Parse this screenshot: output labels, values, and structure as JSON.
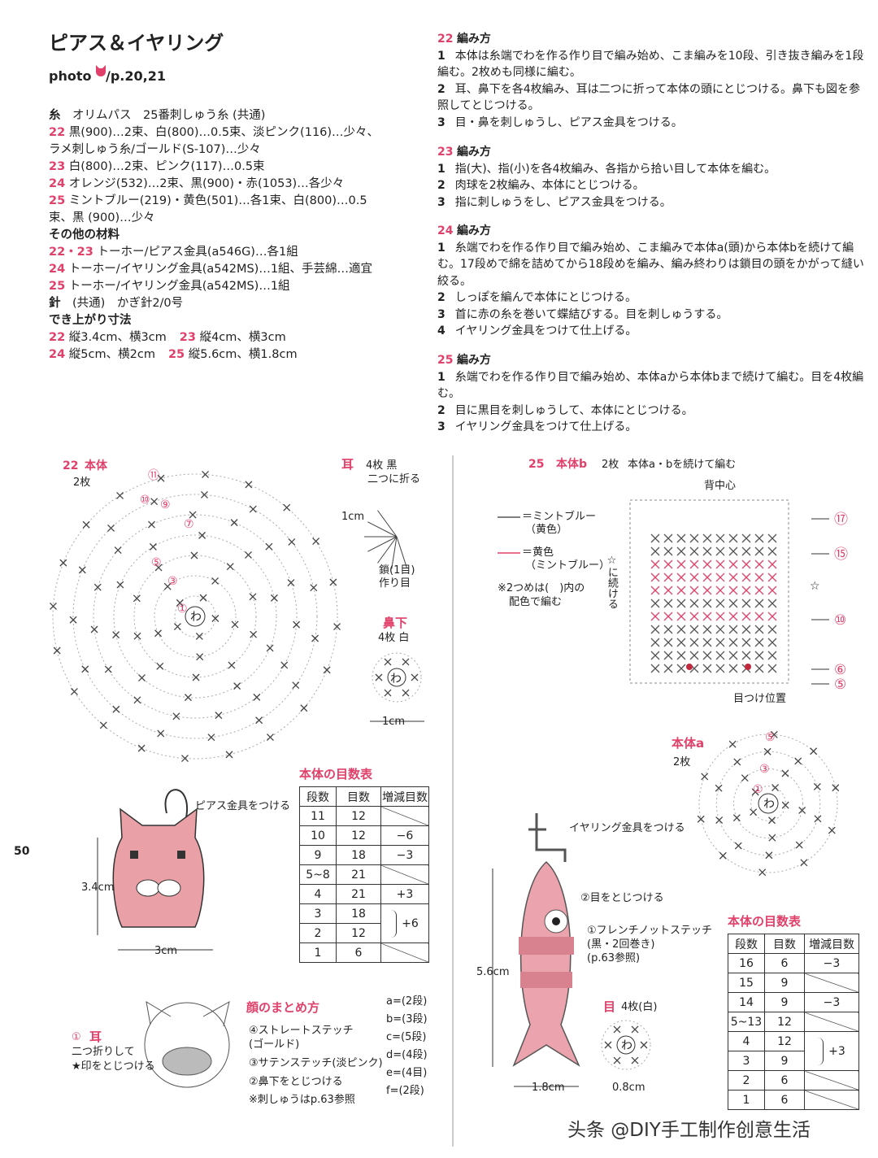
{
  "header": {
    "title": "ピアス＆イヤリング",
    "photo": "photo",
    "page_ref": "/p.20,21"
  },
  "materials": {
    "lines": [
      {
        "label": "糸",
        "text": "オリムパス　25番刺しゅう糸 (共通)"
      },
      {
        "num": "22",
        "text": "黒(900)…2束、白(800)…0.5束、淡ピンク(116)…少々、ラメ刺しゅう糸/ゴールド(S-107)…少々"
      },
      {
        "num": "23",
        "text": "白(800)…2束、ピンク(117)…0.5束"
      },
      {
        "num": "24",
        "text": "オレンジ(532)…2束、黒(900)・赤(1053)…各少々"
      },
      {
        "num": "25",
        "text": "ミントブルー(219)・黄色(501)…各1束、白(800)…0.5束、黒 (900)…少々"
      },
      {
        "heading": "その他の材料"
      },
      {
        "num": "22・23",
        "text": "トーホー/ピアス金具(a546G)…各1組"
      },
      {
        "num": "24",
        "text": "トーホー/イヤリング金具(a542MS)…1組、手芸綿…適宜"
      },
      {
        "num": "25",
        "text": "トーホー/イヤリング金具(a542MS)…1組"
      },
      {
        "label": "針",
        "text": "(共通)　かぎ針2/0号"
      },
      {
        "heading": "でき上がり寸法"
      },
      {
        "parts": [
          {
            "num": "22",
            "text": "縦3.4cm、横3cm"
          },
          {
            "num": "23",
            "text": "縦4cm、横3cm"
          }
        ]
      },
      {
        "parts": [
          {
            "num": "24",
            "text": "縦5cm、横2cm"
          },
          {
            "num": "25",
            "text": "縦5.6cm、横1.8cm"
          }
        ]
      }
    ]
  },
  "instructions": [
    {
      "num": "22",
      "title": "編み方",
      "steps": [
        {
          "n": "1",
          "text": "本体は糸端でわを作る作り目で編み始め、こま編みを10段、引き抜き編みを1段編む。2枚めも同様に編む。"
        },
        {
          "n": "2",
          "text": "耳、鼻下を各4枚編み、耳は二つに折って本体の頭にとじつける。鼻下も図を参照してとじつける。"
        },
        {
          "n": "3",
          "text": "目・鼻を刺しゅうし、ピアス金具をつける。"
        }
      ]
    },
    {
      "num": "23",
      "title": "編み方",
      "steps": [
        {
          "n": "1",
          "text": "指(大)、指(小)を各4枚編み、各指から拾い目して本体を編む。"
        },
        {
          "n": "2",
          "text": "肉球を2枚編み、本体にとじつける。"
        },
        {
          "n": "3",
          "text": "指に刺しゅうをし、ピアス金具をつける。"
        }
      ]
    },
    {
      "num": "24",
      "title": "編み方",
      "steps": [
        {
          "n": "1",
          "text": "糸端でわを作る作り目で編み始め、こま編みで本体a(頭)から本体bを続けて編む。17段めで綿を詰めてから18段めを編み、編み終わりは鎖目の頭をかがって縫い絞る。"
        },
        {
          "n": "2",
          "text": "しっぽを編んで本体にとじつける。"
        },
        {
          "n": "3",
          "text": "首に赤の糸を巻いて蝶結びする。目を刺しゅうする。"
        },
        {
          "n": "4",
          "text": "イヤリング金具をつけて仕上げる。"
        }
      ]
    },
    {
      "num": "25",
      "title": "編み方",
      "steps": [
        {
          "n": "1",
          "text": "糸端でわを作る作り目で編み始め、本体aから本体bまで続けて編む。目を4枚編む。"
        },
        {
          "n": "2",
          "text": "目に黒目を刺しゅうして、本体にとじつける。"
        },
        {
          "n": "3",
          "text": "イヤリング金具をつけて仕上げる。"
        }
      ]
    }
  ],
  "table_22": {
    "title": "本体の目数表",
    "header": [
      "段数",
      "目数",
      "増減目数"
    ],
    "rows": [
      [
        11,
        12,
        null
      ],
      [
        10,
        12,
        "−6"
      ],
      [
        9,
        18,
        "−3"
      ],
      [
        "5~8",
        21,
        null
      ],
      [
        4,
        21,
        "+3"
      ],
      [
        3,
        18,
        "+6"
      ],
      [
        2,
        12
      ],
      [
        1,
        6,
        null
      ]
    ]
  },
  "table_25": {
    "title": "本体の目数表",
    "header": [
      "段数",
      "目数",
      "増減目数"
    ],
    "rows": [
      [
        16,
        6,
        "−3"
      ],
      [
        15,
        9,
        null
      ],
      [
        14,
        9,
        "−3"
      ],
      [
        "5~13",
        12,
        null
      ],
      [
        4,
        12,
        "+3"
      ],
      [
        3,
        9
      ],
      [
        2,
        6,
        null
      ],
      [
        1,
        6,
        null
      ]
    ]
  },
  "diagrams": {
    "d22": {
      "num": "22",
      "label": "本体",
      "count": "2枚",
      "rounds": [
        "⑪",
        "⑩",
        "⑨",
        "⑦",
        "⑤",
        "③",
        "①"
      ],
      "center": "わ"
    },
    "ear": {
      "title": "耳",
      "count": "4枚 黒",
      "fold": "二つに折る",
      "size": "1cm",
      "chain": "鎖(1目)",
      "chain2": "作り目"
    },
    "nose": {
      "title": "鼻下",
      "count": "4枚 白",
      "center": "わ",
      "size": "1cm"
    },
    "d25b": {
      "num": "25",
      "label": "本体b",
      "count": "2枚",
      "note": "本体a・bを続けて編む",
      "center_back": "背中心",
      "legend": [
        {
          "text": "＝ミントブルー",
          "sub": "（黄色）",
          "color": "#555555"
        },
        {
          "text": "＝黄色",
          "sub": "（ミントブルー）",
          "color": "#e0406a"
        }
      ],
      "note2": "※2つめは(　)内の",
      "note3": "配色で編む",
      "continue": "☆に続ける",
      "star": "☆",
      "rounds": [
        "⑰",
        "⑮",
        "⑩",
        "⑥",
        "⑤"
      ],
      "eye_pos": "目つけ位置"
    },
    "d25a": {
      "label": "本体a",
      "count": "2枚",
      "rounds": [
        "⑤",
        "③",
        "①"
      ],
      "center": "わ"
    },
    "face22": {
      "pierce": "ピアス金具をつける",
      "height": "3.4cm",
      "width": "3cm"
    },
    "assembly": {
      "title": "顔のまとめ方",
      "items": [
        "④ストレートステッチ",
        "(ゴールド)",
        "③サテンステッチ(淡ピンク)",
        "②鼻下をとじつける",
        "※刺しゅうはp.63参照"
      ],
      "ear_num": "①",
      "ear_title": "耳",
      "ear_note": [
        "二つ折りして",
        "★印をとじつける"
      ],
      "keys": [
        "a=(2段)",
        "b=(3段)",
        "c=(5段)",
        "d=(4段)",
        "e=(4目)",
        "f=(2段)"
      ]
    },
    "fish": {
      "earring": "イヤリング金具をつける",
      "eye_attach": "②目をとじつける",
      "french": [
        "①フレンチノットステッチ",
        "(黒・2回巻き)",
        "(p.63参照)"
      ],
      "height": "5.6cm",
      "width": "1.8cm"
    },
    "eye": {
      "title": "目",
      "count": "4枚(白)",
      "center": "わ",
      "size": "0.8cm"
    }
  },
  "footer": {
    "page": "50",
    "watermark": "头条 @DIY手工制作创意生活"
  }
}
